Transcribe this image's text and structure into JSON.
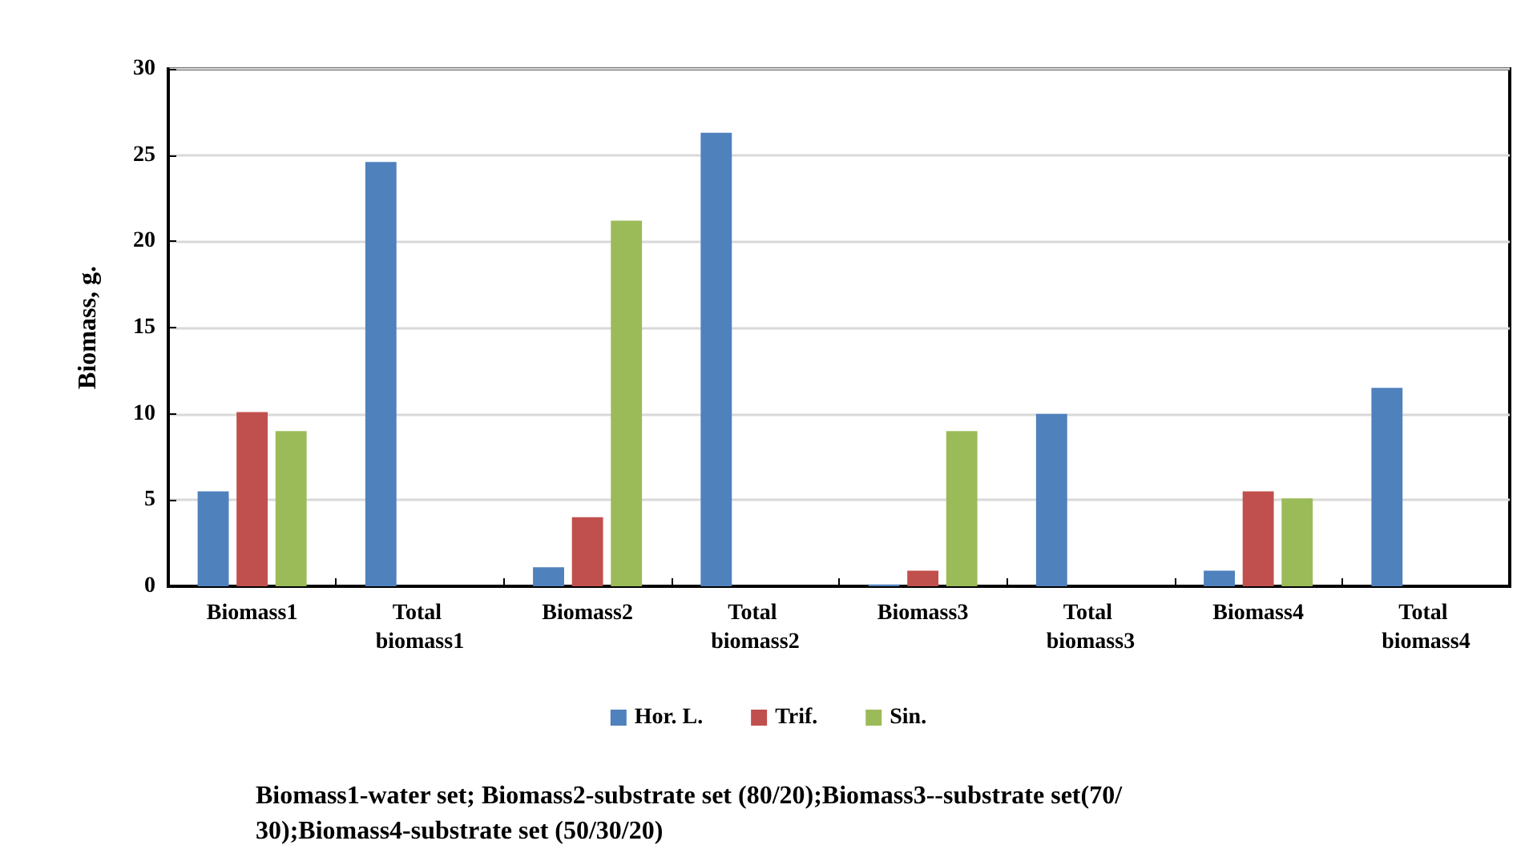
{
  "chart_data": {
    "type": "bar",
    "ylabel": "Biomass, g.",
    "categories": [
      "Biomass1",
      "Total biomass1",
      "Biomass2",
      "Total biomass2",
      "Biomass3",
      "Total biomass3",
      "Biomass4",
      "Total biomass4"
    ],
    "series": [
      {
        "name": "Hor. L.",
        "color": "#4f81bd",
        "values": [
          5.5,
          24.6,
          1.1,
          26.3,
          0.1,
          10.0,
          0.9,
          11.5
        ]
      },
      {
        "name": "Trif.",
        "color": "#c0504d",
        "values": [
          10.1,
          null,
          4.0,
          null,
          0.9,
          null,
          5.5,
          null
        ]
      },
      {
        "name": "Sin.",
        "color": "#9bbb59",
        "values": [
          9.0,
          null,
          21.2,
          null,
          9.0,
          null,
          5.1,
          null
        ]
      }
    ],
    "ylim": [
      0,
      30
    ],
    "yticks": [
      0,
      5,
      10,
      15,
      20,
      25,
      30
    ],
    "grid": "y",
    "legend": "bottom",
    "annotations": [
      "Biomass1-water set; Biomass2-substrate set (80/20);Biomass3--substrate set(70/30);Biomass4-substrate set (50/30/20)"
    ]
  }
}
